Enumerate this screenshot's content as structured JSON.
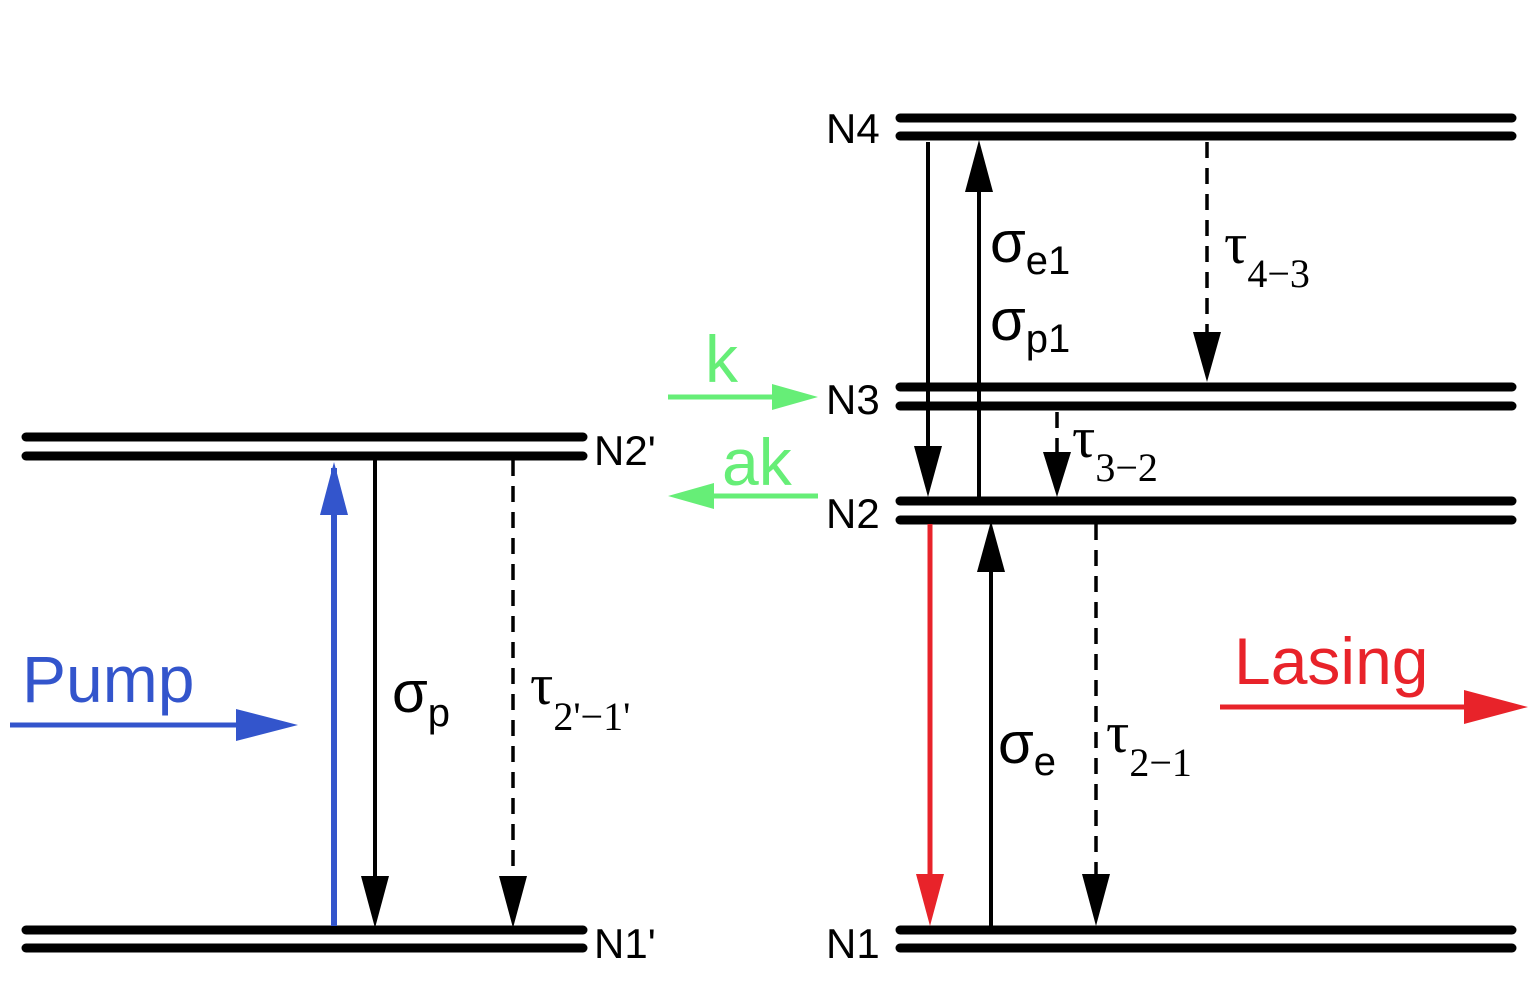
{
  "levels": {
    "n1p": "N1'",
    "n2p": "N2'",
    "n1": "N1",
    "n2": "N2",
    "n3": "N3",
    "n4": "N4"
  },
  "labels": {
    "pump": "Pump",
    "lasing": "Lasing",
    "k": "k",
    "ak": "ak",
    "sigma_p": "σ",
    "sigma_p_sub": "p",
    "tau_21p": "τ",
    "tau_21p_sub": "2'−1'",
    "sigma_e": "σ",
    "sigma_e_sub": "e",
    "tau_21": "τ",
    "tau_21_sub": "2−1",
    "sigma_e1": "σ",
    "sigma_e1_sub": "e1",
    "sigma_p1": "σ",
    "sigma_p1_sub": "p1",
    "tau_43": "τ",
    "tau_43_sub": "4−3",
    "tau_32": "τ",
    "tau_32_sub": "3−2"
  },
  "colors": {
    "pump": "#3355cc",
    "lasing": "#e8232a",
    "transfer": "#66ee77",
    "levels": "#000000"
  }
}
